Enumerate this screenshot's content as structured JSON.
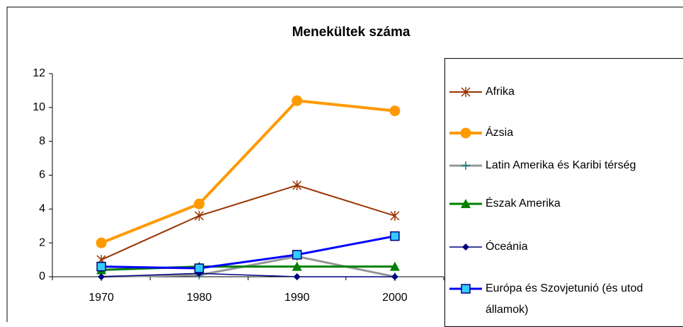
{
  "chart_data": {
    "type": "line",
    "title": "Menekültek száma",
    "categories": [
      "1970",
      "1980",
      "1990",
      "2000"
    ],
    "series": [
      {
        "name": "Afrika",
        "color": "#993300",
        "marker": "star",
        "values": [
          1.0,
          3.6,
          5.4,
          3.6
        ]
      },
      {
        "name": "Ázsia",
        "color": "#ff9900",
        "marker": "circle",
        "values": [
          2.0,
          4.3,
          10.4,
          9.8
        ]
      },
      {
        "name": "Latin Amerika és Karibi térség",
        "color": "#969696",
        "marker": "plus",
        "values": [
          0,
          0.1,
          1.2,
          0
        ]
      },
      {
        "name": "Észak Amerika",
        "color": "#008000",
        "marker": "triangle",
        "values": [
          0.4,
          0.6,
          0.6,
          0.6
        ]
      },
      {
        "name": "Óceánia",
        "color": "#000080",
        "marker": "diamond",
        "values": [
          0,
          0.2,
          0,
          0
        ]
      },
      {
        "name": "Európa és Szovjetunió (és utod államok)",
        "color": "#0000ff",
        "marker": "square",
        "values": [
          0.6,
          0.5,
          1.3,
          2.4
        ]
      }
    ],
    "ylim": [
      0,
      12
    ],
    "yticks": [
      0,
      2,
      4,
      6,
      8,
      10,
      12
    ],
    "grid": false,
    "legend": "right"
  }
}
